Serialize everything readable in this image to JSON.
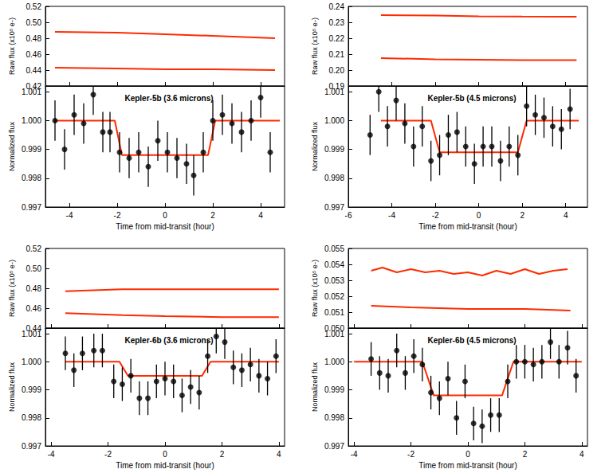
{
  "chart_data": [
    {
      "type": "line",
      "y_label": "Raw flux (x10⁵ e-)",
      "tick_labels": "y",
      "xlim": [
        -5,
        5
      ],
      "xticks": [
        -4,
        -2,
        0,
        2,
        4
      ],
      "ylim": [
        0.42,
        0.52
      ],
      "yticks": [
        0.42,
        0.44,
        0.46,
        0.48,
        {
          "value": 0.5,
          "label": "0.50"
        },
        0.52
      ],
      "series": [
        {
          "color": "#ff2a00",
          "line_style": "solid",
          "x": [
            -4.6,
            -2,
            0,
            2,
            4.6
          ],
          "values": [
            0.488,
            0.487,
            0.485,
            0.483,
            0.48
          ]
        },
        {
          "color": "#ff2a00",
          "line_style": "solid",
          "x": [
            -4.6,
            -2,
            0,
            2,
            4.6
          ],
          "values": [
            0.443,
            0.442,
            0.441,
            0.441,
            0.44
          ]
        }
      ]
    },
    {
      "type": "scatter",
      "title": "Kepler-5b (3.6 microns)",
      "x_label": "Time from mid-transit (hour)",
      "y_label": "Normalized flux",
      "xlim": [
        -5,
        5
      ],
      "xticks": [
        -4,
        -2,
        0,
        2,
        4
      ],
      "ylim": [
        0.997,
        1.0012
      ],
      "yticks": [
        0.997,
        0.998,
        0.999,
        {
          "value": 1.0,
          "label": "1.000"
        },
        1.001
      ],
      "series": [
        {
          "type": "line",
          "color": "#ff2a00",
          "line_style": "solid",
          "x": [
            -4.6,
            -2.1,
            -1.8,
            1.8,
            2.1,
            4.8
          ],
          "values": [
            1.0,
            1.0,
            0.9988,
            0.9988,
            1.0,
            1.0
          ]
        },
        {
          "type": "scatter",
          "color": "#000000",
          "marker": "circle",
          "x": [
            -4.6,
            -4.2,
            -3.8,
            -3.4,
            -3.0,
            -2.6,
            -2.3,
            -1.9,
            -1.5,
            -1.1,
            -0.7,
            -0.3,
            0.1,
            0.5,
            0.9,
            1.2,
            1.6,
            2.0,
            2.4,
            2.8,
            3.2,
            3.6,
            4.0,
            4.4
          ],
          "values": [
            1.0,
            0.999,
            1.0002,
            0.9999,
            1.0009,
            0.9996,
            0.9996,
            0.9989,
            0.9987,
            0.9989,
            0.9984,
            0.9993,
            0.9989,
            0.9987,
            0.9985,
            0.9981,
            0.9989,
            1.0,
            1.0002,
            0.9999,
            0.9996,
            1.0,
            1.0008,
            0.9989
          ],
          "errors": [
            0.0007,
            0.0007,
            0.0007,
            0.0007,
            0.0007,
            0.0007,
            0.0007,
            0.0007,
            0.0007,
            0.0007,
            0.0007,
            0.0007,
            0.0007,
            0.0007,
            0.0007,
            0.0007,
            0.0007,
            0.0007,
            0.0007,
            0.0007,
            0.0007,
            0.0007,
            0.0007,
            0.0007
          ]
        }
      ]
    },
    {
      "type": "line",
      "y_label": "Raw flux (x10⁵ e-)",
      "tick_labels": "y",
      "xlim": [
        -6,
        5
      ],
      "xticks": [
        -6,
        -4,
        -2,
        0,
        2,
        4
      ],
      "ylim": [
        0.19,
        0.24
      ],
      "yticks": [
        0.19,
        {
          "value": 0.2,
          "label": "0.20"
        },
        0.21,
        0.22,
        0.23,
        0.24
      ],
      "series": [
        {
          "color": "#ff2a00",
          "line_style": "solid",
          "x": [
            -4.5,
            -2,
            0,
            2,
            4.5
          ],
          "values": [
            0.2345,
            0.2342,
            0.2338,
            0.2336,
            0.2335
          ]
        },
        {
          "color": "#ff2a00",
          "line_style": "solid",
          "x": [
            -4.5,
            -2,
            0,
            2,
            4.5
          ],
          "values": [
            0.2075,
            0.2068,
            0.2065,
            0.2062,
            0.2062
          ]
        }
      ]
    },
    {
      "type": "scatter",
      "title": "Kepler-5b (4.5 microns)",
      "x_label": "Time from mid-transit (hour)",
      "y_label": "Normalized flux",
      "xlim": [
        -6,
        5
      ],
      "xticks": [
        -6,
        -4,
        -2,
        0,
        2,
        4
      ],
      "ylim": [
        0.997,
        1.0012
      ],
      "yticks": [
        0.997,
        0.998,
        0.999,
        {
          "value": 1.0,
          "label": "1.000"
        },
        1.001
      ],
      "series": [
        {
          "type": "line",
          "color": "#ff2a00",
          "line_style": "solid",
          "x": [
            -4.5,
            -2.2,
            -1.8,
            1.8,
            2.2,
            4.6
          ],
          "values": [
            1.0,
            1.0,
            0.9989,
            0.9989,
            1.0,
            1.0
          ]
        },
        {
          "type": "scatter",
          "color": "#000000",
          "marker": "circle",
          "x": [
            -5.0,
            -4.6,
            -4.2,
            -3.8,
            -3.4,
            -3.0,
            -2.6,
            -2.2,
            -1.8,
            -1.4,
            -1.0,
            -0.6,
            -0.2,
            0.2,
            0.6,
            1.0,
            1.4,
            1.8,
            2.2,
            2.6,
            3.0,
            3.4,
            3.8,
            4.2
          ],
          "values": [
            0.9995,
            1.001,
            0.9998,
            1.0007,
            0.9999,
            0.9991,
            0.9998,
            0.9986,
            0.9988,
            0.9995,
            0.9996,
            0.9991,
            0.9985,
            0.9991,
            0.9991,
            0.9986,
            0.9991,
            0.9988,
            1.0005,
            1.0002,
            1.0001,
            0.9998,
            0.9997,
            1.0004
          ],
          "errors": [
            0.0007,
            0.0007,
            0.0007,
            0.0007,
            0.0007,
            0.0007,
            0.0007,
            0.0007,
            0.0007,
            0.0007,
            0.0007,
            0.0007,
            0.0007,
            0.0007,
            0.0007,
            0.0007,
            0.0007,
            0.0007,
            0.0007,
            0.0007,
            0.0007,
            0.0007,
            0.0007,
            0.0007
          ]
        }
      ]
    },
    {
      "type": "line",
      "y_label": "Raw flux (x10⁵ e-)",
      "tick_labels": "y",
      "xlim": [
        -4.2,
        4.2
      ],
      "xticks": [
        -4,
        -2,
        0,
        2,
        4
      ],
      "ylim": [
        0.44,
        0.52
      ],
      "yticks": [
        0.44,
        0.46,
        0.48,
        {
          "value": 0.5,
          "label": "0.50"
        },
        0.52
      ],
      "series": [
        {
          "color": "#ff2a00",
          "line_style": "solid",
          "x": [
            -3.5,
            -1.5,
            0,
            2,
            4
          ],
          "values": [
            0.477,
            0.479,
            0.479,
            0.479,
            0.479
          ]
        },
        {
          "color": "#ff2a00",
          "line_style": "solid",
          "x": [
            -3.5,
            -1.5,
            0,
            2,
            4
          ],
          "values": [
            0.455,
            0.453,
            0.452,
            0.451,
            0.451
          ]
        }
      ]
    },
    {
      "type": "scatter",
      "title": "Kepler-6b (3.6 microns)",
      "x_label": "Time from mid-transit (hour)",
      "y_label": "Normalized flux",
      "xlim": [
        -4.2,
        4.2
      ],
      "xticks": [
        -4,
        -2,
        0,
        2,
        4
      ],
      "ylim": [
        0.997,
        1.0012
      ],
      "yticks": [
        0.997,
        0.998,
        0.999,
        {
          "value": 1.0,
          "label": "1.000"
        },
        1.001
      ],
      "series": [
        {
          "type": "line",
          "color": "#ff2a00",
          "line_style": "solid",
          "x": [
            -3.5,
            -1.6,
            -1.3,
            1.3,
            1.6,
            4.0
          ],
          "values": [
            1.0,
            1.0,
            0.9995,
            0.9995,
            1.0,
            1.0
          ]
        },
        {
          "type": "scatter",
          "color": "#000000",
          "marker": "circle",
          "x": [
            -3.5,
            -3.2,
            -2.9,
            -2.5,
            -2.2,
            -1.8,
            -1.5,
            -1.2,
            -0.9,
            -0.6,
            -0.3,
            0.0,
            0.3,
            0.6,
            0.9,
            1.2,
            1.5,
            1.8,
            2.1,
            2.4,
            2.7,
            3.0,
            3.3,
            3.6,
            3.9
          ],
          "values": [
            1.0003,
            0.9997,
            1.0003,
            1.0004,
            1.0004,
            0.9993,
            0.9992,
            0.9995,
            0.9987,
            0.9987,
            0.9993,
            0.9994,
            0.9993,
            0.9988,
            0.9991,
            0.9989,
            1.0002,
            1.0009,
            1.0007,
            0.9998,
            0.9997,
            0.9999,
            0.9995,
            0.9994,
            1.0002
          ],
          "errors": [
            0.0006,
            0.0006,
            0.0006,
            0.0006,
            0.0006,
            0.0006,
            0.0006,
            0.0006,
            0.0006,
            0.0006,
            0.0006,
            0.0006,
            0.0006,
            0.0006,
            0.0006,
            0.0006,
            0.0006,
            0.0006,
            0.0006,
            0.0006,
            0.0006,
            0.0006,
            0.0006,
            0.0006,
            0.0006
          ]
        }
      ]
    },
    {
      "type": "line",
      "y_label": "Raw flux (x10⁵ e-)",
      "tick_labels": "y",
      "xlim": [
        -4.2,
        4.2
      ],
      "xticks": [
        -4,
        -2,
        0,
        2,
        4
      ],
      "ylim": [
        0.05,
        0.055
      ],
      "yticks": [
        {
          "value": 0.05,
          "label": "0.050"
        },
        0.051,
        0.052,
        0.053,
        0.054,
        0.055
      ],
      "series": [
        {
          "color": "#ff2a00",
          "line_style": "solid",
          "x": [
            -3.4,
            -3,
            -2.5,
            -2,
            -1.5,
            -1,
            -0.5,
            0,
            0.5,
            1,
            1.5,
            2,
            2.5,
            3,
            3.5
          ],
          "values": [
            0.0536,
            0.0538,
            0.0535,
            0.0537,
            0.0535,
            0.0536,
            0.0534,
            0.0535,
            0.0533,
            0.0536,
            0.0534,
            0.0537,
            0.0534,
            0.0536,
            0.0537
          ]
        },
        {
          "color": "#ff2a00",
          "line_style": "solid",
          "x": [
            -3.4,
            -2,
            0,
            2,
            3.6
          ],
          "values": [
            0.0514,
            0.0513,
            0.0512,
            0.0512,
            0.0511
          ]
        }
      ]
    },
    {
      "type": "scatter",
      "title": "Kepler-6b (4.5 microns)",
      "x_label": "Time from mid-transit (hour)",
      "y_label": "Normalized flux",
      "xlim": [
        -4.2,
        4.2
      ],
      "xticks": [
        -4,
        -2,
        0,
        2,
        4
      ],
      "ylim": [
        0.997,
        1.0012
      ],
      "yticks": [
        0.997,
        0.998,
        0.999,
        {
          "value": 1.0,
          "label": "1.000"
        },
        1.001
      ],
      "series": [
        {
          "type": "line",
          "color": "#ff2a00",
          "line_style": "solid",
          "x": [
            -4.0,
            -1.6,
            -1.2,
            1.2,
            1.6,
            4.0
          ],
          "values": [
            1.0,
            1.0,
            0.9988,
            0.9988,
            1.0,
            1.0
          ]
        },
        {
          "type": "scatter",
          "color": "#000000",
          "marker": "circle",
          "x": [
            -3.4,
            -3.1,
            -2.8,
            -2.5,
            -2.2,
            -1.9,
            -1.6,
            -1.3,
            -1.0,
            -0.7,
            -0.4,
            -0.1,
            0.2,
            0.5,
            0.8,
            1.1,
            1.4,
            1.7,
            2.0,
            2.3,
            2.6,
            2.9,
            3.2,
            3.5,
            3.8
          ],
          "values": [
            1.0001,
            0.9996,
            0.9995,
            1.0004,
            0.9996,
            1.0002,
            0.9999,
            0.9989,
            0.9987,
            0.9994,
            0.998,
            0.9993,
            0.9978,
            0.9977,
            0.9981,
            0.9981,
            0.9993,
            1.0,
            1.0,
            0.9999,
            1.0,
            1.0007,
            1.0,
            1.0005,
            0.9995
          ],
          "errors": [
            0.0006,
            0.0006,
            0.0006,
            0.0006,
            0.0006,
            0.0006,
            0.0006,
            0.0006,
            0.0006,
            0.0006,
            0.0006,
            0.0006,
            0.0006,
            0.0006,
            0.0006,
            0.0006,
            0.0006,
            0.0006,
            0.0006,
            0.0006,
            0.0006,
            0.0006,
            0.0006,
            0.0006,
            0.0006
          ]
        }
      ]
    }
  ]
}
